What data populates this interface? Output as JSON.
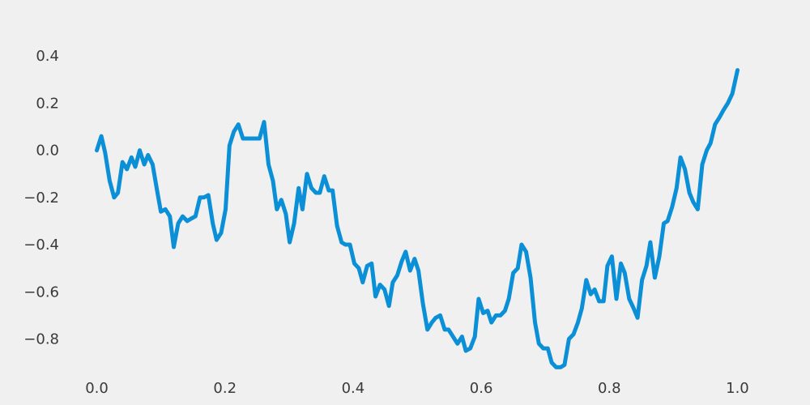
{
  "chart_data": {
    "type": "line",
    "title": "",
    "xlabel": "",
    "ylabel": "",
    "xlim": [
      -0.05,
      1.05
    ],
    "ylim": [
      -0.97,
      0.5
    ],
    "grid": false,
    "legend": "none",
    "x_ticks": [
      0.0,
      0.2,
      0.4,
      0.6,
      0.8,
      1.0
    ],
    "x_tick_labels": [
      "0.0",
      "0.2",
      "0.4",
      "0.6",
      "0.8",
      "1.0"
    ],
    "y_ticks": [
      0.4,
      0.2,
      0.0,
      -0.2,
      -0.4,
      -0.6,
      -0.8
    ],
    "y_tick_labels": [
      "0.4",
      "0.2",
      "0.0",
      "−0.2",
      "−0.4",
      "−0.6",
      "−0.8"
    ],
    "colors": {
      "background": "#f0f0f0",
      "line": "#0b8fd6",
      "text": "#3a3a3a"
    },
    "series": [
      {
        "x": [
          0.0,
          0.007,
          0.013,
          0.02,
          0.027,
          0.033,
          0.04,
          0.047,
          0.054,
          0.06,
          0.067,
          0.074,
          0.08,
          0.087,
          0.094,
          0.1,
          0.107,
          0.114,
          0.12,
          0.127,
          0.134,
          0.141,
          0.147,
          0.154,
          0.161,
          0.167,
          0.174,
          0.181,
          0.187,
          0.194,
          0.201,
          0.207,
          0.214,
          0.221,
          0.228,
          0.234,
          0.241,
          0.248,
          0.254,
          0.261,
          0.268,
          0.275,
          0.281,
          0.288,
          0.295,
          0.301,
          0.308,
          0.315,
          0.321,
          0.328,
          0.335,
          0.342,
          0.348,
          0.355,
          0.362,
          0.368,
          0.375,
          0.382,
          0.388,
          0.395,
          0.402,
          0.409,
          0.415,
          0.422,
          0.429,
          0.435,
          0.442,
          0.449,
          0.456,
          0.462,
          0.469,
          0.476,
          0.482,
          0.489,
          0.496,
          0.502,
          0.509,
          0.516,
          0.523,
          0.529,
          0.536,
          0.543,
          0.549,
          0.556,
          0.563,
          0.57,
          0.576,
          0.583,
          0.59,
          0.596,
          0.603,
          0.61,
          0.616,
          0.623,
          0.63,
          0.637,
          0.643,
          0.65,
          0.657,
          0.663,
          0.67,
          0.677,
          0.684,
          0.69,
          0.697,
          0.704,
          0.71,
          0.717,
          0.724,
          0.73,
          0.737,
          0.744,
          0.751,
          0.757,
          0.764,
          0.771,
          0.777,
          0.784,
          0.791,
          0.797,
          0.804,
          0.811,
          0.818,
          0.824,
          0.831,
          0.838,
          0.844,
          0.851,
          0.858,
          0.864,
          0.871,
          0.878,
          0.885,
          0.891,
          0.898,
          0.905,
          0.911,
          0.918,
          0.925,
          0.931,
          0.938,
          0.945,
          0.952,
          0.958,
          0.965,
          0.972,
          0.978,
          0.985,
          0.992,
          1.0
        ],
        "y": [
          0.0,
          0.06,
          -0.01,
          -0.13,
          -0.2,
          -0.18,
          -0.05,
          -0.08,
          -0.03,
          -0.07,
          0.0,
          -0.06,
          -0.02,
          -0.06,
          -0.17,
          -0.26,
          -0.25,
          -0.28,
          -0.41,
          -0.31,
          -0.28,
          -0.3,
          -0.29,
          -0.28,
          -0.2,
          -0.2,
          -0.19,
          -0.31,
          -0.38,
          -0.35,
          -0.25,
          0.02,
          0.08,
          0.11,
          0.05,
          0.05,
          0.05,
          0.05,
          0.05,
          0.12,
          -0.06,
          -0.13,
          -0.25,
          -0.21,
          -0.27,
          -0.39,
          -0.31,
          -0.16,
          -0.25,
          -0.1,
          -0.16,
          -0.18,
          -0.18,
          -0.11,
          -0.17,
          -0.17,
          -0.32,
          -0.39,
          -0.4,
          -0.4,
          -0.48,
          -0.5,
          -0.56,
          -0.49,
          -0.48,
          -0.62,
          -0.57,
          -0.59,
          -0.66,
          -0.56,
          -0.53,
          -0.47,
          -0.43,
          -0.51,
          -0.46,
          -0.51,
          -0.65,
          -0.76,
          -0.73,
          -0.71,
          -0.7,
          -0.76,
          -0.76,
          -0.79,
          -0.82,
          -0.79,
          -0.85,
          -0.84,
          -0.79,
          -0.63,
          -0.69,
          -0.68,
          -0.73,
          -0.7,
          -0.7,
          -0.68,
          -0.63,
          -0.52,
          -0.5,
          -0.4,
          -0.43,
          -0.54,
          -0.73,
          -0.82,
          -0.84,
          -0.84,
          -0.9,
          -0.92,
          -0.92,
          -0.91,
          -0.8,
          -0.78,
          -0.73,
          -0.67,
          -0.55,
          -0.61,
          -0.59,
          -0.64,
          -0.64,
          -0.49,
          -0.45,
          -0.63,
          -0.48,
          -0.52,
          -0.63,
          -0.67,
          -0.71,
          -0.55,
          -0.49,
          -0.39,
          -0.54,
          -0.45,
          -0.31,
          -0.3,
          -0.24,
          -0.16,
          -0.03,
          -0.08,
          -0.18,
          -0.22,
          -0.25,
          -0.06,
          0.0,
          0.03,
          0.11,
          0.14,
          0.17,
          0.2,
          0.24,
          0.34
        ]
      }
    ]
  }
}
